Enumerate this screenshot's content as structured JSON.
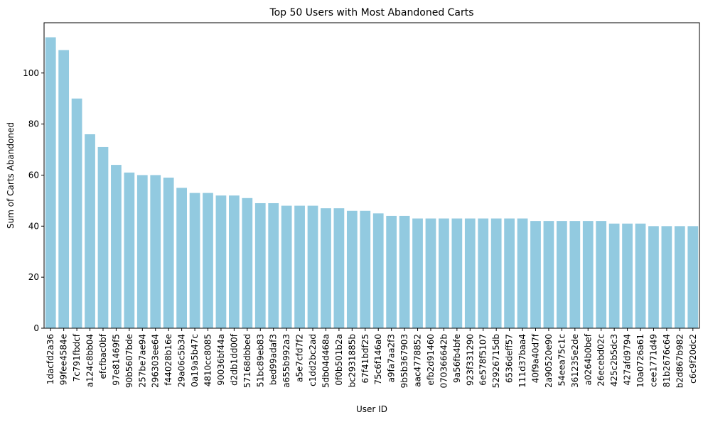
{
  "chart_data": {
    "type": "bar",
    "title": "Top 50 Users with Most Abandoned Carts",
    "xlabel": "User ID",
    "ylabel": "Sum of Carts Abandoned",
    "ylim": [
      0,
      119.7
    ],
    "yticks": [
      0,
      20,
      40,
      60,
      80,
      100
    ],
    "grid": false,
    "legend": "none",
    "bar_color": "#92cae0",
    "categories": [
      "1dacfd2a36",
      "99fee4584e",
      "7c791fbdcf",
      "a124c8bb04",
      "efcfbac0bf",
      "97e81469f5",
      "90b5607bde",
      "257be7ae94",
      "296303ee64",
      "f44028b16e",
      "29a06c5b34",
      "0a19a5b47c",
      "4810cc8085",
      "90036bf44a",
      "d2db1dd00f",
      "57168dbbed",
      "51bc89eb83",
      "bed99adaf3",
      "a655b992a3",
      "a5e7cfd7f2",
      "c1dd2bc2ad",
      "5db04d468a",
      "0f0b501b2a",
      "bc2931885b",
      "67f41bdf25",
      "75c6f146a0",
      "a9fa7aa2f3",
      "9b5b367903",
      "aac4778852",
      "efb2d91460",
      "070366642b",
      "9a56fb4bfe",
      "923f331290",
      "6e578f5107",
      "52926715db",
      "6536deff57",
      "111d37baa4",
      "40f9a40d7f",
      "2a90520e90",
      "54eea75c1c",
      "361235e2de",
      "a0264b0bef",
      "26ecebd02c",
      "425c2b5dc3",
      "427afd9794",
      "10a0726a61",
      "cee1771d49",
      "81b2676c64",
      "b2d867b982",
      "c6c9f20dc2"
    ],
    "values": [
      114,
      109,
      90,
      76,
      71,
      64,
      61,
      60,
      60,
      59,
      55,
      53,
      53,
      52,
      52,
      51,
      49,
      49,
      48,
      48,
      48,
      47,
      47,
      46,
      46,
      45,
      44,
      44,
      43,
      43,
      43,
      43,
      43,
      43,
      43,
      43,
      43,
      42,
      42,
      42,
      42,
      42,
      42,
      41,
      41,
      41,
      40,
      40,
      40,
      40
    ]
  }
}
